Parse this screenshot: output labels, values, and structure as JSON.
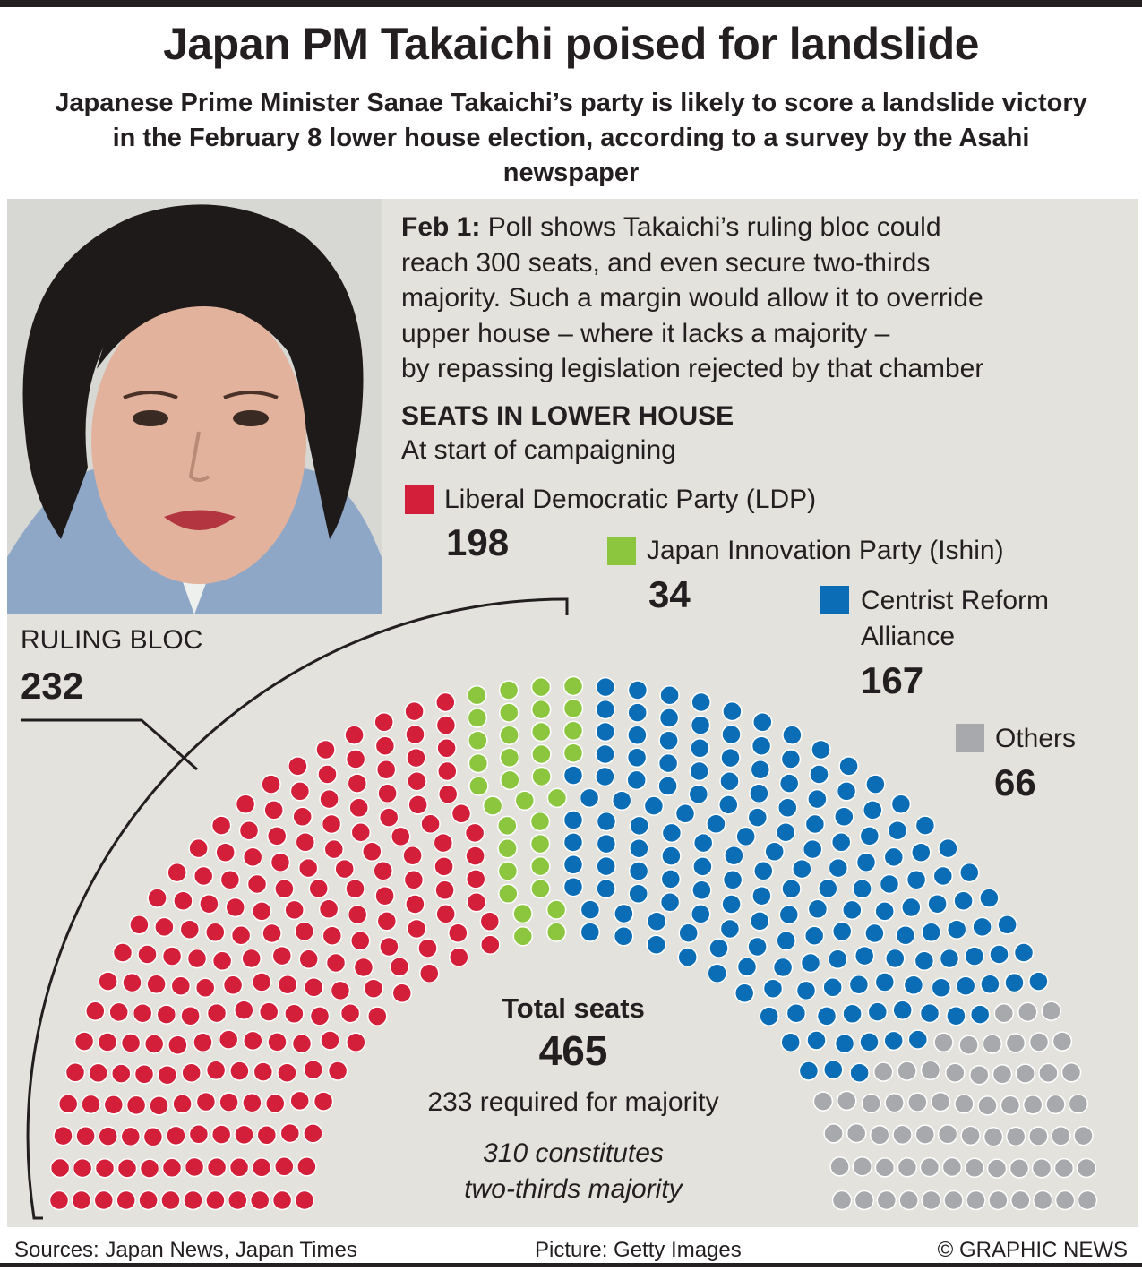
{
  "title": "Japan PM Takaichi poised for landslide",
  "subtitle": "Japanese Prime Minister Sanae Takaichi’s party is likely to score a landslide victory in the February 8 lower house election, according to a survey by the Asahi newspaper",
  "intro": {
    "date_label": "Feb 1:",
    "lines": [
      "Poll shows Takaichi’s ruling bloc could",
      "reach 300 seats, and even secure two-thirds",
      "majority. Such a margin would allow it to override",
      "upper house – where it lacks a majority –",
      "by repassing legislation rejected by that chamber"
    ]
  },
  "photo": {
    "icon": "portrait-photo-icon",
    "colors": {
      "background": "#d7d7d3",
      "hair": "#1e1a19",
      "skin": "#e2b29c",
      "jacket": "#8ea7c7"
    }
  },
  "chart_data": {
    "type": "parliament",
    "title": "SEATS IN LOWER HOUSE",
    "subtitle": "At start of campaigning",
    "total_label": "Total seats",
    "total": 465,
    "total_text": "465",
    "majority_note": "233 required for majority",
    "two_thirds_note": [
      "310 constitutes",
      "two-thirds majority"
    ],
    "ruling_bloc": {
      "label": "RULING BLOC",
      "value": 232,
      "value_text": "232"
    },
    "parties": [
      {
        "name_lines": [
          "Liberal Democratic Party (LDP)"
        ],
        "seats": 198,
        "seats_text": "198",
        "color": "#d31f3a"
      },
      {
        "name_lines": [
          "Japan Innovation Party (Ishin)"
        ],
        "seats": 34,
        "seats_text": "34",
        "color": "#8cc63f"
      },
      {
        "name_lines": [
          "Centrist Reform",
          "Alliance"
        ],
        "seats": 167,
        "seats_text": "167",
        "color": "#0b6db5"
      },
      {
        "name_lines": [
          "Others"
        ],
        "seats": 66,
        "seats_text": "66",
        "color": "#a7a9ac"
      }
    ]
  },
  "footer": {
    "sources": "Sources: Japan News, Japan Times",
    "picture": "Picture: Getty Images",
    "credit": "© GRAPHIC NEWS"
  },
  "colors": {
    "panel": "#e4e2dc",
    "text": "#231f20"
  }
}
